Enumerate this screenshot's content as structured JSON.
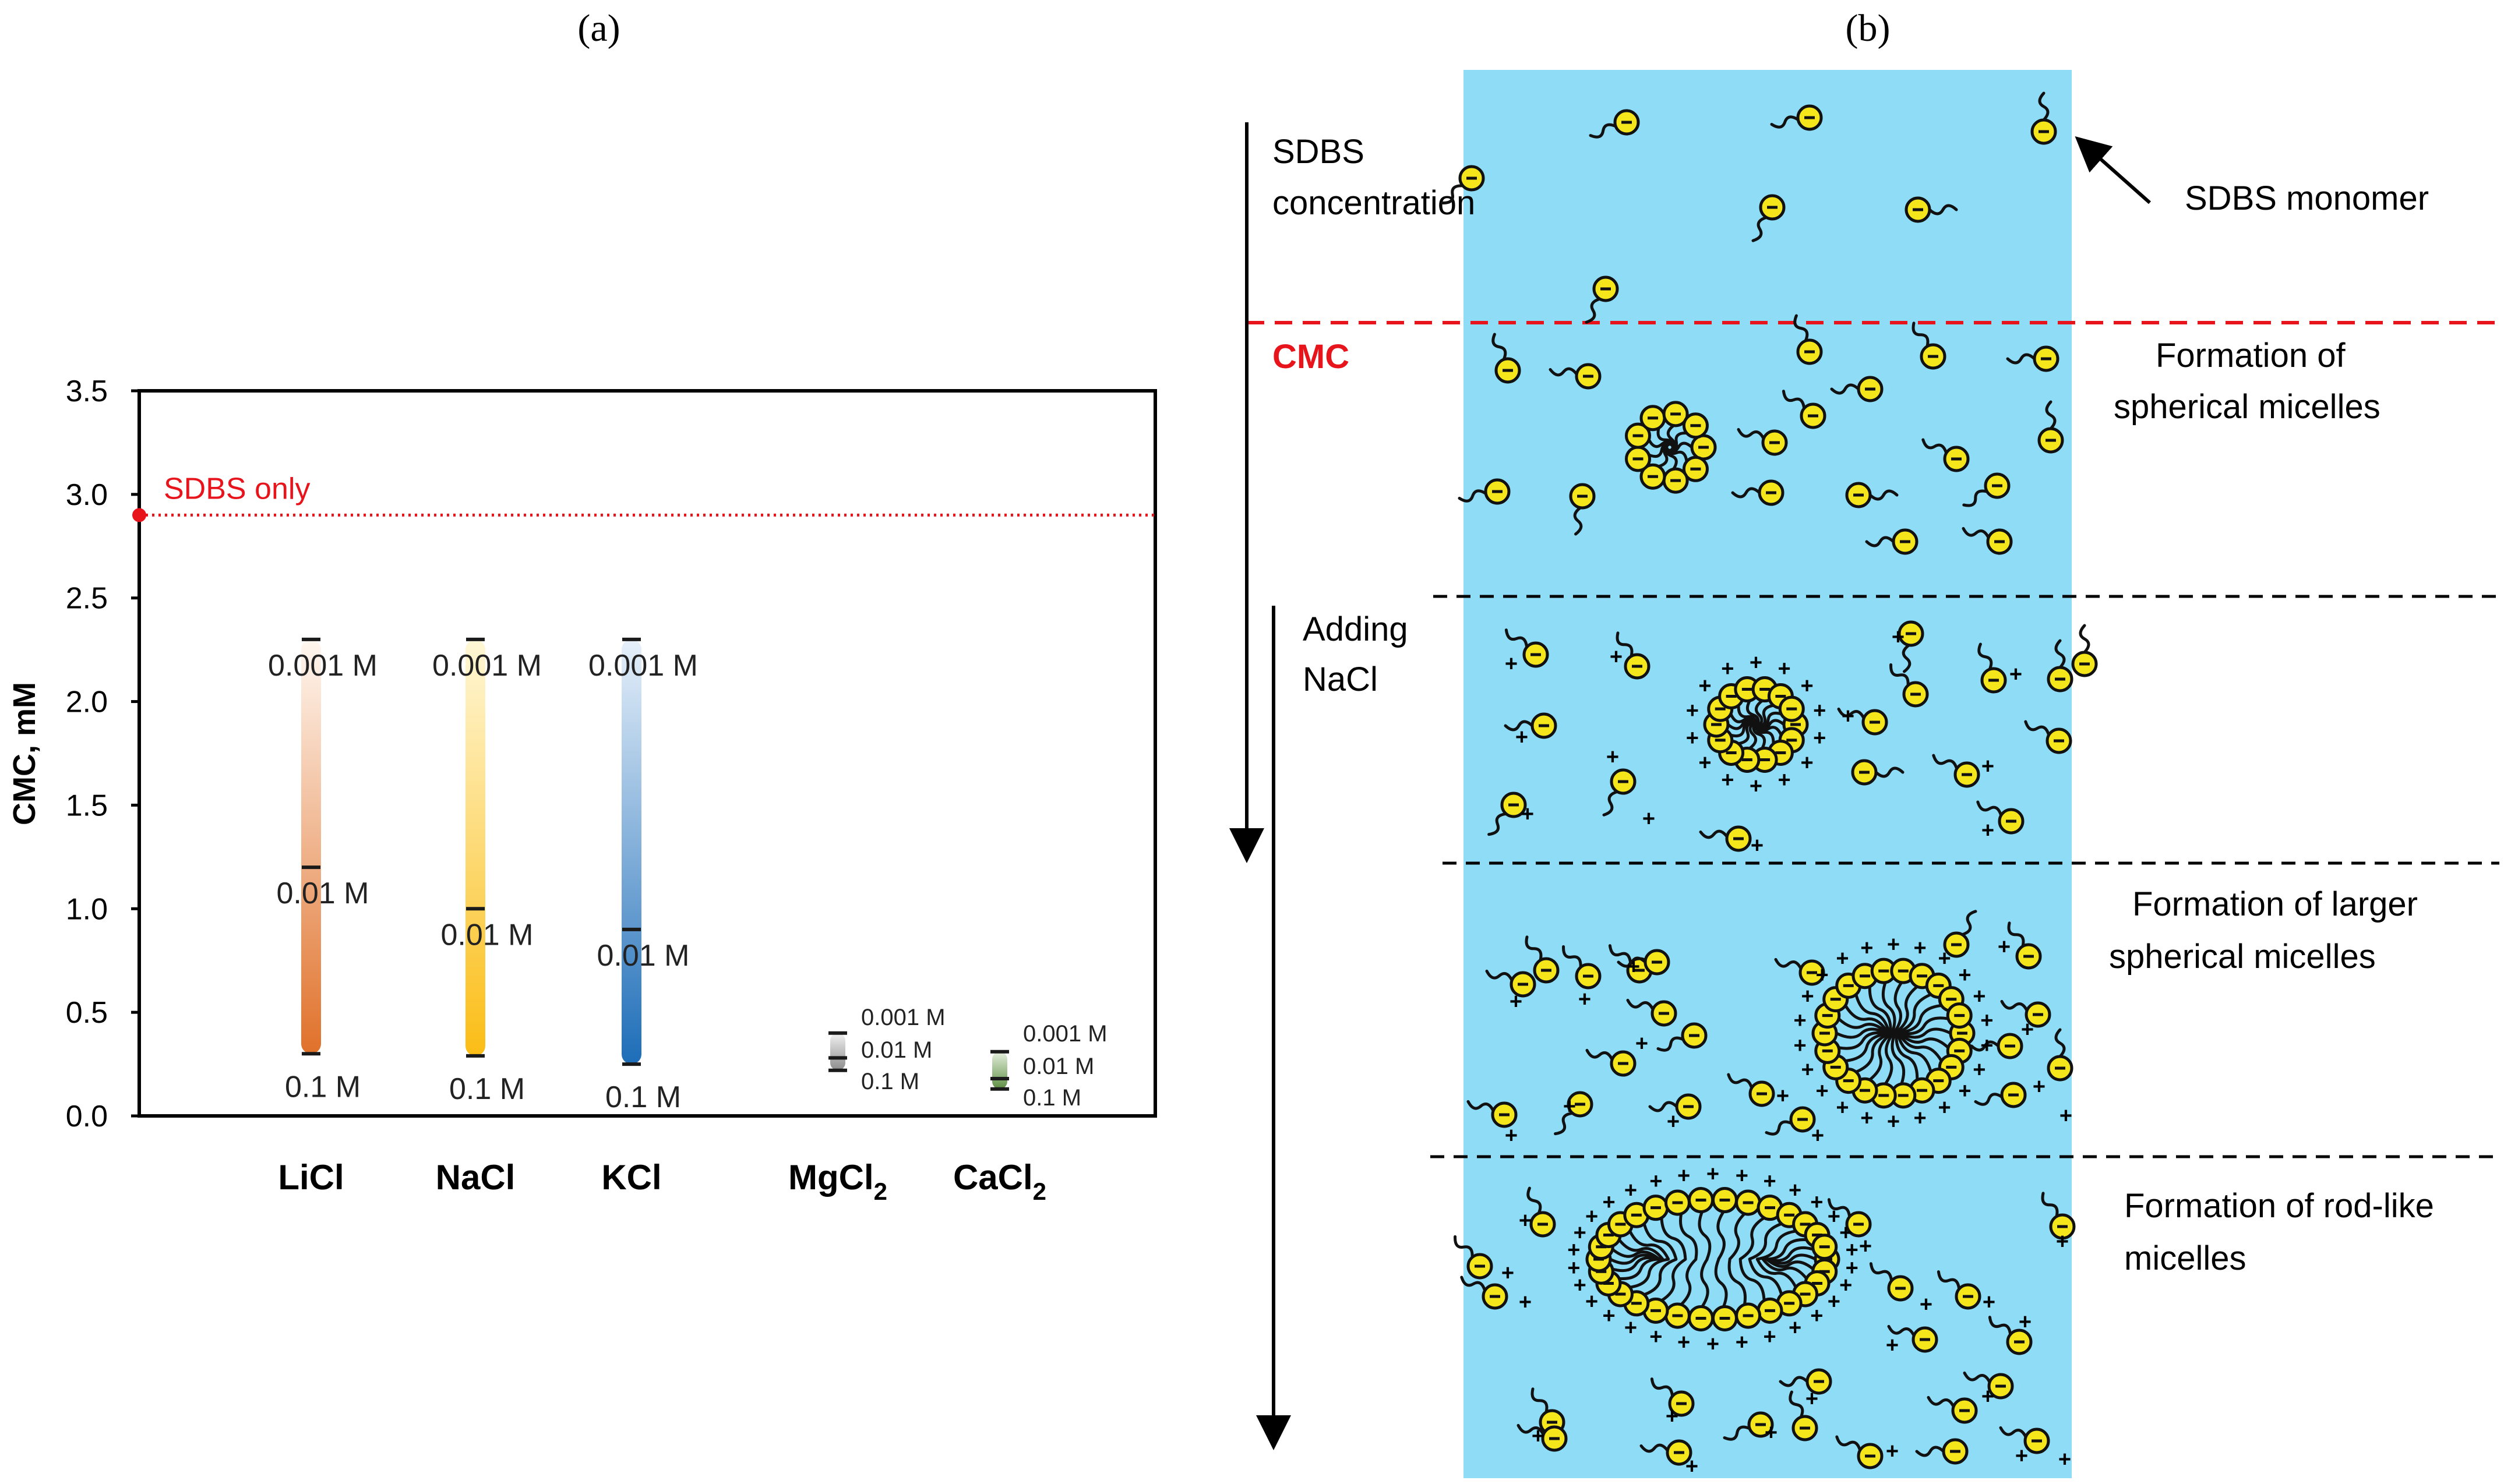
{
  "panel_a": {
    "label": "(a)",
    "chart_data": {
      "type": "bar",
      "title": "",
      "xlabel": "",
      "ylabel": "CMC, mM",
      "ylim": [
        0,
        3.5
      ],
      "yticks": [
        0.0,
        0.5,
        1.0,
        1.5,
        2.0,
        2.5,
        3.0,
        3.5
      ],
      "ytick_labels": [
        "0.0",
        "0.5",
        "1.0",
        "1.5",
        "2.0",
        "2.5",
        "3.0",
        "3.5"
      ],
      "grid": false,
      "reference": {
        "label": "SDBS only",
        "value": 2.9,
        "color": "#e8141c"
      },
      "categories": [
        {
          "name": "LiCl",
          "sub": "",
          "color": "#e0712a",
          "values": [
            2.3,
            1.2,
            0.3
          ],
          "labels": [
            "0.001 M",
            "0.01 M",
            "0.1 M"
          ],
          "small": false
        },
        {
          "name": "NaCl",
          "sub": "",
          "color": "#fbbd16",
          "values": [
            2.3,
            1.0,
            0.29
          ],
          "labels": [
            "0.001 M",
            "0.01 M",
            "0.1 M"
          ],
          "small": false
        },
        {
          "name": "KCl",
          "sub": "",
          "color": "#1d6db8",
          "values": [
            2.3,
            0.9,
            0.25
          ],
          "labels": [
            "0.001 M",
            "0.01 M",
            "0.1 M"
          ],
          "small": false
        },
        {
          "name": "MgCl",
          "sub": "2",
          "color": "#8c8c8c",
          "values": [
            0.4,
            0.28,
            0.22
          ],
          "labels": [
            "0.001 M",
            "0.01 M",
            "0.1 M"
          ],
          "small": true
        },
        {
          "name": "CaCl",
          "sub": "2",
          "color": "#5d8f42",
          "values": [
            0.31,
            0.18,
            0.13
          ],
          "labels": [
            "0.001 M",
            "0.01 M",
            "0.1 M"
          ],
          "small": true
        }
      ]
    }
  },
  "panel_b": {
    "label": "(b)",
    "monomer_label": "SDBS monomer",
    "concentration_label": [
      "SDBS",
      "concentration"
    ],
    "cmc_label": "CMC",
    "adding_label": [
      "Adding",
      "NaCl"
    ],
    "stages": [
      [
        "Formation of",
        "spherical micelles"
      ],
      [
        "Formation of larger",
        "spherical micelles"
      ],
      [
        "Formation of rod-like",
        "micelles"
      ]
    ],
    "colors": {
      "water": "#8fdcf7",
      "head": "#f5e61c",
      "cmc_line": "#e8141c"
    }
  }
}
